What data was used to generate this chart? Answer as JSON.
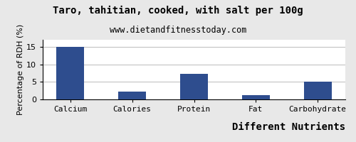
{
  "title": "Taro, tahitian, cooked, with salt per 100g",
  "subtitle": "www.dietandfitnesstoday.com",
  "xlabel": "Different Nutrients",
  "ylabel": "Percentage of RDH (%)",
  "categories": [
    "Calcium",
    "Calories",
    "Protein",
    "Fat",
    "Carbohydrate"
  ],
  "values": [
    15,
    2.2,
    7.2,
    1.2,
    5.1
  ],
  "bar_color": "#2e4d8e",
  "ylim": [
    0,
    17
  ],
  "yticks": [
    0,
    5,
    10,
    15
  ],
  "background_color": "#e8e8e8",
  "plot_bg_color": "#ffffff",
  "title_fontsize": 10,
  "subtitle_fontsize": 8.5,
  "xlabel_fontsize": 10,
  "ylabel_fontsize": 8,
  "tick_fontsize": 8
}
